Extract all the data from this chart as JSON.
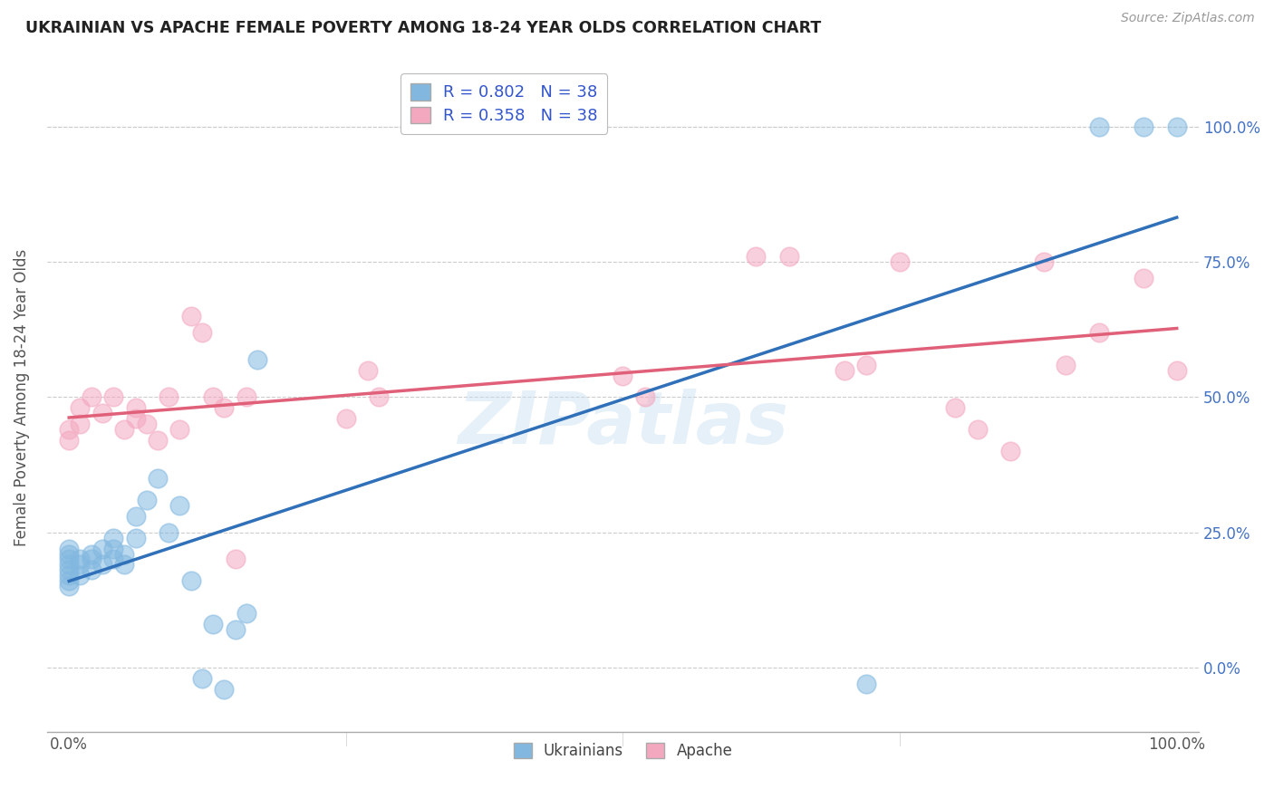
{
  "title": "UKRAINIAN VS APACHE FEMALE POVERTY AMONG 18-24 YEAR OLDS CORRELATION CHART",
  "source": "Source: ZipAtlas.com",
  "ylabel": "Female Poverty Among 18-24 Year Olds",
  "xlim": [
    -0.02,
    1.02
  ],
  "ylim": [
    -0.12,
    1.12
  ],
  "yticks": [
    0.0,
    0.25,
    0.5,
    0.75,
    1.0
  ],
  "xticks": [
    0.0,
    0.25,
    0.5,
    0.75,
    1.0
  ],
  "ukrainians_R": "0.802",
  "ukrainians_N": "38",
  "apache_R": "0.358",
  "apache_N": "38",
  "ukrainian_color": "#82b8e0",
  "apache_color": "#f4a8c0",
  "ukrainian_line_color": "#3070b8",
  "apache_line_color": "#e0607a",
  "background_color": "#ffffff",
  "ukrainians_x": [
    0.0,
    0.0,
    0.0,
    0.0,
    0.0,
    0.0,
    0.0,
    0.0,
    0.01,
    0.01,
    0.01,
    0.02,
    0.02,
    0.02,
    0.03,
    0.03,
    0.04,
    0.04,
    0.04,
    0.05,
    0.05,
    0.06,
    0.06,
    0.07,
    0.08,
    0.09,
    0.1,
    0.11,
    0.12,
    0.13,
    0.14,
    0.15,
    0.16,
    0.17,
    0.72,
    0.93,
    0.97,
    1.0
  ],
  "ukrainians_y": [
    0.22,
    0.21,
    0.2,
    0.19,
    0.18,
    0.17,
    0.16,
    0.15,
    0.2,
    0.19,
    0.17,
    0.21,
    0.2,
    0.18,
    0.22,
    0.19,
    0.24,
    0.22,
    0.2,
    0.21,
    0.19,
    0.28,
    0.24,
    0.31,
    0.35,
    0.25,
    0.3,
    0.16,
    -0.02,
    0.08,
    -0.04,
    0.07,
    0.1,
    0.57,
    -0.03,
    1.0,
    1.0,
    1.0
  ],
  "apache_x": [
    0.0,
    0.0,
    0.01,
    0.01,
    0.02,
    0.03,
    0.04,
    0.05,
    0.06,
    0.06,
    0.07,
    0.08,
    0.09,
    0.1,
    0.11,
    0.12,
    0.13,
    0.14,
    0.15,
    0.16,
    0.25,
    0.27,
    0.28,
    0.5,
    0.52,
    0.62,
    0.65,
    0.7,
    0.72,
    0.75,
    0.8,
    0.82,
    0.85,
    0.88,
    0.9,
    0.93,
    0.97,
    1.0
  ],
  "apache_y": [
    0.44,
    0.42,
    0.48,
    0.45,
    0.5,
    0.47,
    0.5,
    0.44,
    0.48,
    0.46,
    0.45,
    0.42,
    0.5,
    0.44,
    0.65,
    0.62,
    0.5,
    0.48,
    0.2,
    0.5,
    0.46,
    0.55,
    0.5,
    0.54,
    0.5,
    0.76,
    0.76,
    0.55,
    0.56,
    0.75,
    0.48,
    0.44,
    0.4,
    0.75,
    0.56,
    0.62,
    0.72,
    0.55
  ],
  "legend_ukr_label": "R = 0.802   N = 38",
  "legend_apa_label": "R = 0.358   N = 38",
  "bottom_legend_ukr": "Ukrainians",
  "bottom_legend_apa": "Apache"
}
